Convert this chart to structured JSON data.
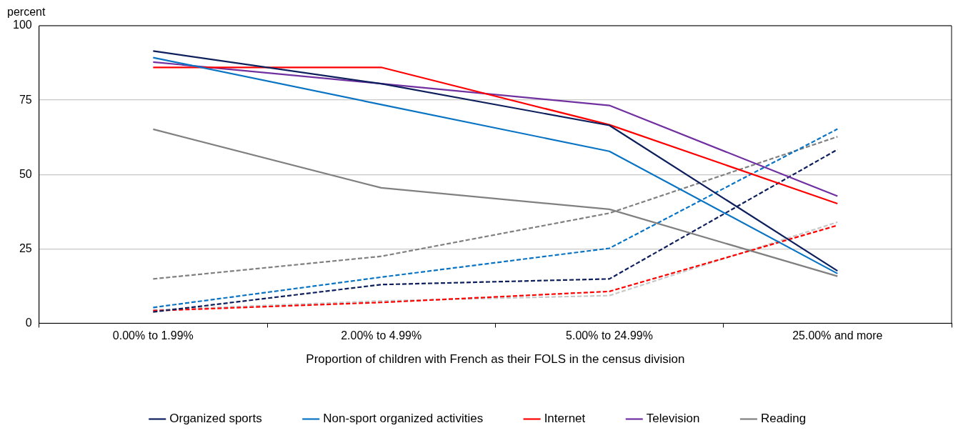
{
  "chart_data": {
    "type": "line",
    "ylabel": "percent",
    "xlabel": "Proportion of children with French as their FOLS in the census division",
    "categories": [
      "0.00% to 1.99%",
      "2.00% to 4.99%",
      "5.00% to 24.99%",
      "25.00% and more"
    ],
    "ylim": [
      0,
      100
    ],
    "yticks": [
      0,
      25,
      50,
      75,
      100
    ],
    "grid": "y",
    "legend": "bottom",
    "marker": "none",
    "series": [
      {
        "name": "Organized sports",
        "color": "#0d1f5c",
        "values": [
          91.5,
          80.5,
          66.5,
          17.6
        ]
      },
      {
        "name": "Non-sport organized activities",
        "color": "#0a74c4",
        "values": [
          89.3,
          73.5,
          57.8,
          16.7
        ]
      },
      {
        "name": "Internet",
        "color": "#ff0000",
        "values": [
          86,
          86,
          66.7,
          40.2
        ]
      },
      {
        "name": "Television",
        "color": "#7030a0",
        "values": [
          87.8,
          80.5,
          73.2,
          42.7
        ]
      },
      {
        "name": "Reading",
        "color": "#808080",
        "values": [
          65.2,
          45.5,
          38.3,
          15.8
        ]
      },
      {
        "color": "#0d1f5c",
        "line_style": "dashed",
        "values": [
          3.8,
          13,
          14.9,
          58.4
        ]
      },
      {
        "color": "#0a74c4",
        "line_style": "dashed",
        "values": [
          5.3,
          15.5,
          25.2,
          65.3
        ]
      },
      {
        "color": "#ff0000",
        "line_style": "dashed",
        "values": [
          4.2,
          7,
          10.7,
          32.9
        ]
      },
      {
        "color": "#808080",
        "line_style": "dashed",
        "values": [
          14.9,
          22.5,
          37,
          62.7
        ]
      },
      {
        "color": "#c8c8c8",
        "line_style": "dashed",
        "values": [
          4.5,
          7.5,
          9.3,
          34
        ]
      }
    ]
  }
}
